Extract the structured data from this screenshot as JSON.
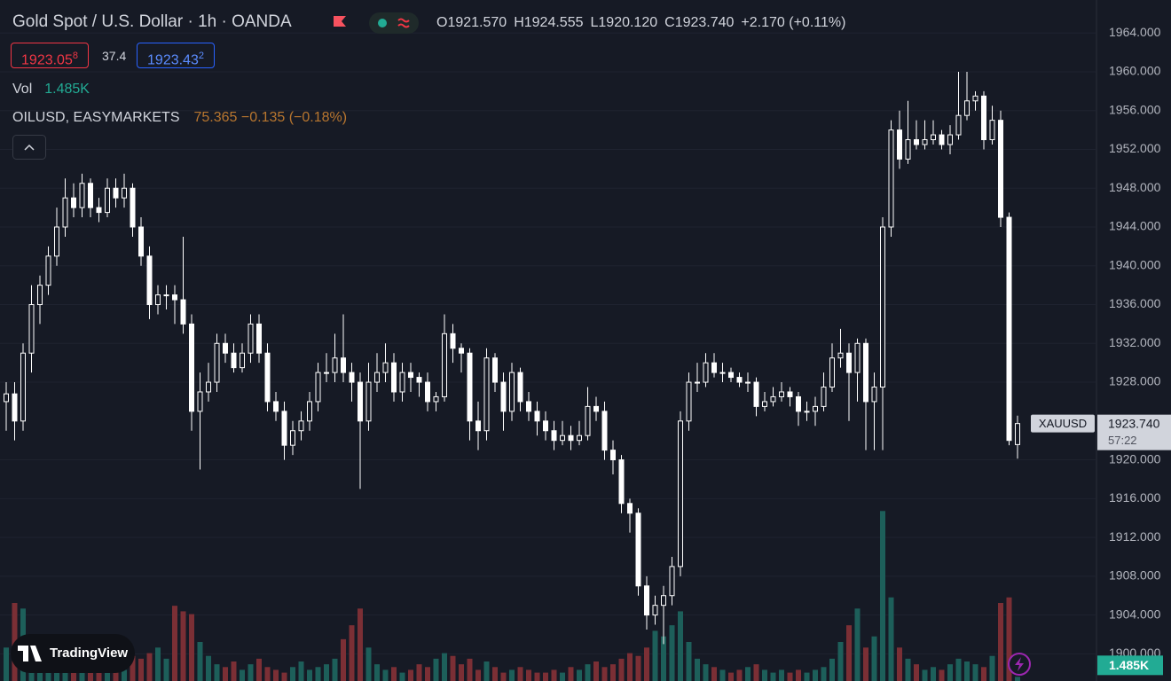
{
  "header": {
    "title": "Gold Spot / U.S. Dollar · 1h · OANDA",
    "ohlc_text": [
      {
        "label": "O",
        "value": "1921.570"
      },
      {
        "label": "H",
        "value": "1924.555"
      },
      {
        "label": "L",
        "value": "1920.120"
      },
      {
        "label": "C",
        "value": "1923.740"
      }
    ],
    "change": "+2.170 (+0.11%)",
    "bid": "1923.05",
    "bid_last_digit": "8",
    "spread": "37.4",
    "ask": "1923.43",
    "ask_last_digit": "2",
    "volume_label": "Vol",
    "indicator_name": "OILUSD, EASYMARKETS",
    "indicator_values": "75.365 −0.135 (−0.18%)",
    "brand": "TradingView"
  },
  "chart_data": {
    "type": "candlestick",
    "symbol": "XAUUSD",
    "last_price_label": "1923.740",
    "countdown": "57:22",
    "last_volume_label": "1.485K",
    "candle_color": "#ffffff",
    "up_volume_color": "#1d5f5a",
    "down_volume_color": "#7b2f35",
    "grid": true,
    "ylim": [
      1897.2,
      1967.4
    ],
    "yticks": [
      {
        "value": 1900,
        "label": "1900.000"
      },
      {
        "value": 1904,
        "label": "1904.000"
      },
      {
        "value": 1908,
        "label": "1908.000"
      },
      {
        "value": 1912,
        "label": "1912.000"
      },
      {
        "value": 1916,
        "label": "1916.000"
      },
      {
        "value": 1920,
        "label": "1920.000"
      },
      {
        "value": 1928,
        "label": "1928.000"
      },
      {
        "value": 1932,
        "label": "1932.000"
      },
      {
        "value": 1936,
        "label": "1936.000"
      },
      {
        "value": 1940,
        "label": "1940.000"
      },
      {
        "value": 1944,
        "label": "1944.000"
      },
      {
        "value": 1948,
        "label": "1948.000"
      },
      {
        "value": 1952,
        "label": "1952.000"
      },
      {
        "value": 1956,
        "label": "1956.000"
      },
      {
        "value": 1960,
        "label": "1960.000"
      },
      {
        "value": 1964,
        "label": "1964.000"
      }
    ],
    "vlim": [
      0,
      70
    ],
    "ohlc": [
      [
        1926,
        1928,
        1923,
        1926.8
      ],
      [
        1926.8,
        1928,
        1922,
        1924
      ],
      [
        1924,
        1932,
        1923,
        1931
      ],
      [
        1931,
        1938,
        1929,
        1936
      ],
      [
        1936,
        1939,
        1934,
        1938
      ],
      [
        1938,
        1942,
        1937,
        1941
      ],
      [
        1941,
        1946,
        1940,
        1944
      ],
      [
        1944,
        1949,
        1943,
        1947
      ],
      [
        1947,
        1948.5,
        1945,
        1946
      ],
      [
        1946,
        1949.5,
        1945,
        1948.5
      ],
      [
        1948.5,
        1949,
        1945,
        1946
      ],
      [
        1946,
        1947,
        1944.5,
        1945.5
      ],
      [
        1945.5,
        1949,
        1945,
        1948
      ],
      [
        1948,
        1949,
        1946,
        1947
      ],
      [
        1947,
        1949.5,
        1946,
        1948
      ],
      [
        1948,
        1948.5,
        1943,
        1944
      ],
      [
        1944,
        1945,
        1940,
        1941
      ],
      [
        1941,
        1942,
        1934.5,
        1936
      ],
      [
        1936,
        1938,
        1935,
        1937
      ],
      [
        1937,
        1938,
        1935.5,
        1937
      ],
      [
        1937,
        1938,
        1934,
        1936.5
      ],
      [
        1936.5,
        1943,
        1933,
        1934
      ],
      [
        1934,
        1935,
        1923,
        1925
      ],
      [
        1925,
        1929,
        1919,
        1927
      ],
      [
        1927,
        1930,
        1926,
        1928
      ],
      [
        1928,
        1933,
        1927,
        1932
      ],
      [
        1932,
        1933,
        1930,
        1931
      ],
      [
        1931,
        1932,
        1929,
        1929.5
      ],
      [
        1929.5,
        1932,
        1929,
        1931
      ],
      [
        1931,
        1935,
        1930,
        1934
      ],
      [
        1934,
        1935,
        1930,
        1931
      ],
      [
        1931,
        1932,
        1925,
        1926
      ],
      [
        1926,
        1927,
        1924,
        1925
      ],
      [
        1925,
        1926,
        1920,
        1921.5
      ],
      [
        1921.5,
        1924,
        1920.5,
        1923
      ],
      [
        1923,
        1925,
        1922,
        1924
      ],
      [
        1924,
        1927,
        1923,
        1926
      ],
      [
        1926,
        1930,
        1925,
        1929
      ],
      [
        1929,
        1931,
        1928,
        1929
      ],
      [
        1929,
        1933,
        1928,
        1930.5
      ],
      [
        1930.5,
        1935,
        1928,
        1929
      ],
      [
        1929,
        1930,
        1926,
        1928
      ],
      [
        1928,
        1929,
        1917,
        1924
      ],
      [
        1924,
        1930,
        1923,
        1928
      ],
      [
        1928,
        1931,
        1927,
        1929
      ],
      [
        1929,
        1932,
        1928,
        1930
      ],
      [
        1930,
        1931,
        1926,
        1927
      ],
      [
        1927,
        1930,
        1926,
        1929
      ],
      [
        1929,
        1930,
        1927,
        1928.5
      ],
      [
        1928.5,
        1929,
        1926.5,
        1928
      ],
      [
        1928,
        1929,
        1925,
        1926
      ],
      [
        1926,
        1927,
        1925,
        1926.5
      ],
      [
        1926.5,
        1935,
        1926,
        1933
      ],
      [
        1933,
        1934,
        1930,
        1931.5
      ],
      [
        1931.5,
        1932,
        1929,
        1931
      ],
      [
        1931,
        1931.5,
        1922,
        1924
      ],
      [
        1924,
        1926,
        1921,
        1923
      ],
      [
        1923,
        1931.5,
        1922,
        1930.5
      ],
      [
        1930.5,
        1931,
        1927,
        1928
      ],
      [
        1928,
        1929,
        1923,
        1925
      ],
      [
        1925,
        1930,
        1924,
        1929
      ],
      [
        1929,
        1929.5,
        1925,
        1926
      ],
      [
        1926,
        1927,
        1924,
        1925
      ],
      [
        1925,
        1926,
        1922.5,
        1924
      ],
      [
        1924,
        1925,
        1922,
        1923
      ],
      [
        1923,
        1924,
        1921,
        1922
      ],
      [
        1922,
        1924,
        1921.5,
        1922.5
      ],
      [
        1922.5,
        1923.5,
        1921,
        1922
      ],
      [
        1922,
        1924,
        1921.5,
        1922.5
      ],
      [
        1922.5,
        1927.5,
        1922,
        1925.5
      ],
      [
        1925.5,
        1926.5,
        1924,
        1925
      ],
      [
        1925,
        1926,
        1920,
        1921
      ],
      [
        1921,
        1922,
        1918.5,
        1920
      ],
      [
        1920,
        1920.5,
        1914.5,
        1915.5
      ],
      [
        1915.5,
        1916,
        1912.5,
        1914.5
      ],
      [
        1914.5,
        1915,
        1906,
        1907
      ],
      [
        1907,
        1908,
        1902.5,
        1904
      ],
      [
        1904,
        1906,
        1903,
        1905
      ],
      [
        1905,
        1907,
        1901,
        1906
      ],
      [
        1906,
        1910,
        1905,
        1909
      ],
      [
        1909,
        1925,
        1908,
        1924
      ],
      [
        1924,
        1929,
        1923,
        1928
      ],
      [
        1928,
        1930,
        1927,
        1928
      ],
      [
        1928,
        1931,
        1927.5,
        1930
      ],
      [
        1930,
        1931,
        1928.5,
        1929
      ],
      [
        1929,
        1930,
        1928,
        1929
      ],
      [
        1929,
        1929.5,
        1928,
        1928.5
      ],
      [
        1928.5,
        1929,
        1927.5,
        1928
      ],
      [
        1928,
        1929,
        1927,
        1928
      ],
      [
        1928,
        1928.5,
        1924.5,
        1925.5
      ],
      [
        1925.5,
        1927,
        1925,
        1926
      ],
      [
        1926,
        1927.5,
        1925.5,
        1926.5
      ],
      [
        1926.5,
        1928,
        1926,
        1927
      ],
      [
        1927,
        1927.5,
        1925.5,
        1926.5
      ],
      [
        1926.5,
        1927,
        1923.5,
        1925
      ],
      [
        1925,
        1926,
        1924,
        1925
      ],
      [
        1925,
        1926.5,
        1923.5,
        1925.5
      ],
      [
        1925.5,
        1929,
        1925,
        1927.5
      ],
      [
        1927.5,
        1932,
        1927,
        1930.5
      ],
      [
        1930.5,
        1933.5,
        1929.5,
        1931
      ],
      [
        1931,
        1932,
        1924,
        1929
      ],
      [
        1929,
        1932.5,
        1926,
        1932
      ],
      [
        1932,
        1932.5,
        1921,
        1926
      ],
      [
        1926,
        1929,
        1921,
        1927.5
      ],
      [
        1927.5,
        1945,
        1921,
        1944
      ],
      [
        1944,
        1955,
        1943,
        1954
      ],
      [
        1954,
        1956,
        1950,
        1951
      ],
      [
        1951,
        1957,
        1950.5,
        1953
      ],
      [
        1953,
        1955,
        1952,
        1952.5
      ],
      [
        1952.5,
        1955,
        1952,
        1953
      ],
      [
        1953,
        1955,
        1952.5,
        1953.5
      ],
      [
        1953.5,
        1954,
        1952,
        1952.5
      ],
      [
        1952.5,
        1954.5,
        1951.5,
        1953.5
      ],
      [
        1953.5,
        1960,
        1953,
        1955.5
      ],
      [
        1955.5,
        1960,
        1955,
        1957
      ],
      [
        1957,
        1958,
        1956,
        1957.5
      ],
      [
        1957.5,
        1958,
        1952,
        1953
      ],
      [
        1953,
        1956.5,
        1952.5,
        1955
      ],
      [
        1955,
        1956,
        1944,
        1945
      ],
      [
        1945,
        1945.5,
        1921.5,
        1922
      ],
      [
        1921.57,
        1924.555,
        1920.12,
        1923.74
      ]
    ],
    "volume": [
      12,
      28,
      26,
      9,
      7,
      5,
      8,
      6,
      12,
      5,
      4,
      7,
      6,
      5,
      4,
      9,
      8,
      10,
      12,
      8,
      27,
      25,
      24,
      14,
      9,
      6,
      5,
      7,
      4,
      6,
      8,
      5,
      4,
      3,
      5,
      7,
      4,
      5,
      6,
      8,
      15,
      20,
      26,
      12,
      6,
      4,
      5,
      3,
      4,
      6,
      5,
      8,
      10,
      9,
      6,
      8,
      4,
      7,
      5,
      3,
      4,
      5,
      4,
      3,
      3,
      4,
      3,
      5,
      4,
      6,
      7,
      5,
      6,
      8,
      10,
      9,
      12,
      18,
      16,
      20,
      25,
      14,
      8,
      6,
      5,
      4,
      3,
      4,
      5,
      6,
      4,
      3,
      4,
      3,
      4,
      3,
      4,
      5,
      8,
      14,
      20,
      26,
      12,
      16,
      61,
      30,
      12,
      8,
      6,
      4,
      5,
      4,
      6,
      8,
      7,
      6,
      5,
      9,
      28,
      30,
      1.485
    ]
  }
}
